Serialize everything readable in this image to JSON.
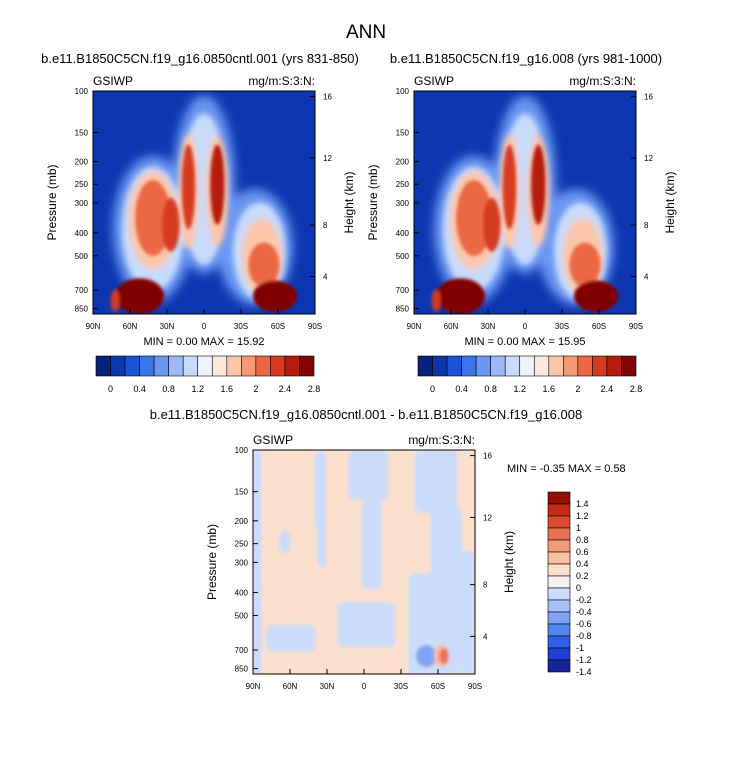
{
  "page_title": "ANN",
  "chart_data": [
    {
      "type": "heatmap",
      "title": "b.e11.B1850C5CN.f19_g16.0850cntl.001 (yrs 831-850)",
      "left_label": "GSIWP",
      "right_label": "mg/m:S:3:N:",
      "xlabel": "",
      "ylabel": "Pressure (mb)",
      "ylabel_right": "Height (km)",
      "x_ticks": [
        "90N",
        "60N",
        "30N",
        "0",
        "30S",
        "60S",
        "90S"
      ],
      "y_ticks": [
        "100",
        "150",
        "200",
        "250",
        "300",
        "400",
        "500",
        "700",
        "850"
      ],
      "y_ticks_right": [
        "4",
        "8",
        "12",
        "16"
      ],
      "stats_text": "MIN =   0.00  MAX = 15.92",
      "min": 0.0,
      "max": 15.92,
      "colorbar_labels": [
        "0",
        "0.4",
        "0.8",
        "1.2",
        "1.6",
        "2",
        "2.4",
        "2.8"
      ]
    },
    {
      "type": "heatmap",
      "title": "b.e11.B1850C5CN.f19_g16.008 (yrs 981-1000)",
      "left_label": "GSIWP",
      "right_label": "mg/m:S:3:N:",
      "xlabel": "",
      "ylabel": "Pressure (mb)",
      "ylabel_right": "Height (km)",
      "x_ticks": [
        "90N",
        "60N",
        "30N",
        "0",
        "30S",
        "60S",
        "90S"
      ],
      "y_ticks": [
        "100",
        "150",
        "200",
        "250",
        "300",
        "400",
        "500",
        "700",
        "850"
      ],
      "y_ticks_right": [
        "4",
        "8",
        "12",
        "16"
      ],
      "stats_text": "MIN =   0.00  MAX = 15.95",
      "min": 0.0,
      "max": 15.95,
      "colorbar_labels": [
        "0",
        "0.4",
        "0.8",
        "1.2",
        "1.6",
        "2",
        "2.4",
        "2.8"
      ]
    },
    {
      "type": "heatmap",
      "title": "b.e11.B1850C5CN.f19_g16.0850cntl.001 - b.e11.B1850C5CN.f19_g16.008",
      "left_label": "GSIWP",
      "right_label": "mg/m:S:3:N:",
      "xlabel": "",
      "ylabel": "Pressure (mb)",
      "ylabel_right": "Height (km)",
      "x_ticks": [
        "90N",
        "60N",
        "30N",
        "0",
        "30S",
        "60S",
        "90S"
      ],
      "y_ticks": [
        "100",
        "150",
        "200",
        "250",
        "300",
        "400",
        "500",
        "700",
        "850"
      ],
      "y_ticks_right": [
        "4",
        "8",
        "12",
        "16"
      ],
      "stats_text": "MIN =  -0.35  MAX =    0.58",
      "min": -0.35,
      "max": 0.58,
      "colorbar_labels": [
        "1.4",
        "1.2",
        "1",
        "0.8",
        "0.6",
        "0.4",
        "0.2",
        "0",
        "-0.2",
        "-0.4",
        "-0.6",
        "-0.8",
        "-1",
        "-1.2",
        "-1.4"
      ]
    }
  ],
  "colors": {
    "abs_scale": [
      "#08217a",
      "#0c37b0",
      "#1a52d8",
      "#3b73ea",
      "#6a97f2",
      "#9bb9f7",
      "#c8dbfb",
      "#eef3fd",
      "#fde8dc",
      "#fbc6aa",
      "#f59874",
      "#ec6845",
      "#d63a20",
      "#b51b0e",
      "#800606"
    ],
    "diff_scale": [
      "#1a239a",
      "#1f3fd0",
      "#2f60ec",
      "#5585f2",
      "#7ea3f5",
      "#a6c2f8",
      "#cbdcfb",
      "#f3f3f3",
      "#fbe0cd",
      "#f8bfa0",
      "#f39b78",
      "#ea7153",
      "#dd4a30",
      "#c42b18",
      "#921008"
    ]
  }
}
